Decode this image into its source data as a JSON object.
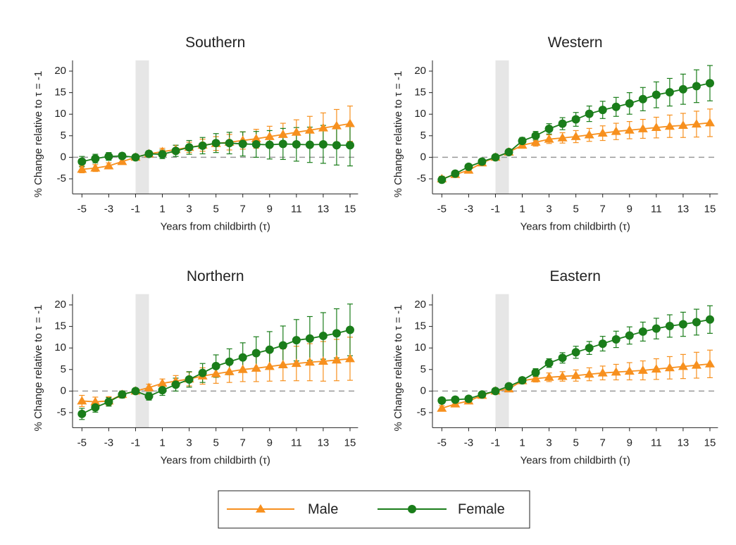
{
  "chart_data": [
    {
      "type": "line",
      "title": "Southern",
      "x_label": "Years from childbirth (τ)",
      "y_label": "% Change relative to τ = -1",
      "x": [
        -5,
        -4,
        -3,
        -2,
        -1,
        0,
        1,
        2,
        3,
        4,
        5,
        6,
        7,
        8,
        9,
        10,
        11,
        12,
        13,
        14,
        15
      ],
      "xlim": [
        -5.7,
        15.6
      ],
      "xticks": [
        -5,
        -3,
        -1,
        1,
        3,
        5,
        7,
        9,
        11,
        13,
        15
      ],
      "ylim": [
        -8.5,
        22.5
      ],
      "yticks": [
        -5,
        0,
        5,
        10,
        15,
        20
      ],
      "highlight_x": [
        -1,
        0
      ],
      "ref_line_y": 0,
      "series": [
        {
          "name": "Male",
          "color": "#f7901e",
          "marker": "triangle",
          "values": [
            -2.8,
            -2.5,
            -2,
            -1,
            0,
            0.8,
            1.3,
            1.8,
            2.3,
            2.8,
            3.2,
            3.5,
            3.9,
            4.3,
            4.8,
            5.3,
            5.8,
            6.3,
            6.8,
            7.3,
            7.8
          ],
          "errors": [
            0.8,
            0.8,
            0.7,
            0.6,
            0,
            0.6,
            0.8,
            1,
            1.2,
            1.4,
            1.6,
            1.8,
            2,
            2.2,
            2.4,
            2.6,
            2.9,
            3.2,
            3.5,
            3.8,
            4.1
          ]
        },
        {
          "name": "Female",
          "color": "#1a7d1a",
          "marker": "circle",
          "values": [
            -1,
            -0.3,
            0.2,
            0.3,
            0,
            0.8,
            0.7,
            1.5,
            2.3,
            2.7,
            3.3,
            3.3,
            3.1,
            3,
            2.9,
            3.1,
            3,
            2.9,
            3,
            2.8,
            2.8
          ],
          "errors": [
            1.2,
            1,
            0.9,
            0.7,
            0,
            0.7,
            1,
            1.3,
            1.6,
            1.9,
            2.2,
            2.5,
            2.8,
            3,
            3.3,
            3.6,
            3.9,
            4.1,
            4.4,
            4.6,
            4.8
          ]
        }
      ]
    },
    {
      "type": "line",
      "title": "Western",
      "x_label": "Years from childbirth (τ)",
      "y_label": "% Change relative to τ = -1",
      "x": [
        -5,
        -4,
        -3,
        -2,
        -1,
        0,
        1,
        2,
        3,
        4,
        5,
        6,
        7,
        8,
        9,
        10,
        11,
        12,
        13,
        14,
        15
      ],
      "xlim": [
        -5.7,
        15.6
      ],
      "xticks": [
        -5,
        -3,
        -1,
        1,
        3,
        5,
        7,
        9,
        11,
        13,
        15
      ],
      "ylim": [
        -8.5,
        22.5
      ],
      "yticks": [
        -5,
        0,
        5,
        10,
        15,
        20
      ],
      "highlight_x": [
        -1,
        0
      ],
      "ref_line_y": 0,
      "series": [
        {
          "name": "Male",
          "color": "#f7901e",
          "marker": "triangle",
          "values": [
            -5,
            -4,
            -3,
            -1.3,
            0,
            1.2,
            2.8,
            3.5,
            4.2,
            4.5,
            4.8,
            5.2,
            5.6,
            6,
            6.3,
            6.6,
            6.9,
            7.2,
            7.4,
            7.7,
            8
          ],
          "errors": [
            0.6,
            0.5,
            0.5,
            0.4,
            0,
            0.5,
            0.7,
            0.9,
            1,
            1.2,
            1.4,
            1.5,
            1.7,
            1.9,
            2,
            2.2,
            2.4,
            2.6,
            2.8,
            3,
            3.2
          ]
        },
        {
          "name": "Female",
          "color": "#1a7d1a",
          "marker": "circle",
          "values": [
            -5.2,
            -3.8,
            -2.2,
            -1,
            0,
            1.2,
            3.8,
            5,
            6.6,
            7.8,
            8.8,
            10.1,
            11,
            11.7,
            12.5,
            13.5,
            14.5,
            15.1,
            15.8,
            16.5,
            17.2
          ],
          "errors": [
            0.7,
            0.6,
            0.5,
            0.4,
            0,
            0.5,
            0.8,
            1,
            1.2,
            1.4,
            1.6,
            1.8,
            2,
            2.2,
            2.5,
            2.7,
            3,
            3.2,
            3.5,
            3.8,
            4.1
          ]
        }
      ]
    },
    {
      "type": "line",
      "title": "Northern",
      "x_label": "Years from childbirth (τ)",
      "y_label": "% Change relative to τ = -1",
      "x": [
        -5,
        -4,
        -3,
        -2,
        -1,
        0,
        1,
        2,
        3,
        4,
        5,
        6,
        7,
        8,
        9,
        10,
        11,
        12,
        13,
        14,
        15
      ],
      "xlim": [
        -5.7,
        15.6
      ],
      "xticks": [
        -5,
        -3,
        -1,
        1,
        3,
        5,
        7,
        9,
        11,
        13,
        15
      ],
      "ylim": [
        -8.5,
        22.5
      ],
      "yticks": [
        -5,
        0,
        5,
        10,
        15,
        20
      ],
      "highlight_x": [
        -1,
        0
      ],
      "ref_line_y": 0,
      "series": [
        {
          "name": "Male",
          "color": "#f7901e",
          "marker": "triangle",
          "values": [
            -2.3,
            -2.5,
            -2.3,
            -0.8,
            0,
            0.8,
            1.8,
            2.3,
            2.8,
            3.5,
            4,
            4.5,
            5,
            5.3,
            5.7,
            6.1,
            6.4,
            6.7,
            6.9,
            7.2,
            7.5
          ],
          "errors": [
            1.3,
            1.1,
            1,
            0.8,
            0,
            0.8,
            1,
            1.3,
            1.6,
            1.9,
            2.2,
            2.5,
            2.8,
            3.1,
            3.4,
            3.7,
            4,
            4.3,
            4.6,
            4.8,
            5
          ]
        },
        {
          "name": "Female",
          "color": "#1a7d1a",
          "marker": "circle",
          "values": [
            -5.3,
            -3.8,
            -2.5,
            -0.8,
            0,
            -1.2,
            0.2,
            1.5,
            2.7,
            4.2,
            5.8,
            6.8,
            7.8,
            8.8,
            9.6,
            10.6,
            11.8,
            12.2,
            12.8,
            13.4,
            14.2
          ],
          "errors": [
            1.3,
            1.1,
            1,
            0.8,
            0,
            0.9,
            1.2,
            1.5,
            1.8,
            2.2,
            2.6,
            3,
            3.4,
            3.8,
            4.2,
            4.5,
            4.8,
            5.1,
            5.4,
            5.7,
            6
          ]
        }
      ]
    },
    {
      "type": "line",
      "title": "Eastern",
      "x_label": "Years from childbirth (τ)",
      "y_label": "% Change relative to τ = -1",
      "x": [
        -5,
        -4,
        -3,
        -2,
        -1,
        0,
        1,
        2,
        3,
        4,
        5,
        6,
        7,
        8,
        9,
        10,
        11,
        12,
        13,
        14,
        15
      ],
      "xlim": [
        -5.7,
        15.6
      ],
      "xticks": [
        -5,
        -3,
        -1,
        1,
        3,
        5,
        7,
        9,
        11,
        13,
        15
      ],
      "ylim": [
        -8.5,
        22.5
      ],
      "yticks": [
        -5,
        0,
        5,
        10,
        15,
        20
      ],
      "highlight_x": [
        -1,
        0
      ],
      "ref_line_y": 0,
      "series": [
        {
          "name": "Male",
          "color": "#f7901e",
          "marker": "triangle",
          "values": [
            -4,
            -3,
            -2.3,
            -1,
            0,
            0.5,
            2.4,
            2.9,
            3.2,
            3.4,
            3.6,
            3.9,
            4.2,
            4.4,
            4.6,
            4.8,
            5.1,
            5.4,
            5.7,
            6,
            6.3
          ],
          "errors": [
            0.6,
            0.5,
            0.5,
            0.4,
            0,
            0.5,
            0.7,
            0.8,
            1,
            1.1,
            1.3,
            1.5,
            1.6,
            1.8,
            2,
            2.2,
            2.4,
            2.6,
            2.8,
            3,
            3.2
          ]
        },
        {
          "name": "Female",
          "color": "#1a7d1a",
          "marker": "circle",
          "values": [
            -2.2,
            -2,
            -1.8,
            -0.8,
            0,
            1.1,
            2.5,
            4.3,
            6.5,
            7.7,
            9,
            10,
            11,
            12,
            12.9,
            13.8,
            14.5,
            15.1,
            15.5,
            16,
            16.6
          ],
          "errors": [
            0.6,
            0.5,
            0.5,
            0.4,
            0,
            0.5,
            0.7,
            0.9,
            1,
            1.2,
            1.4,
            1.5,
            1.7,
            1.9,
            2,
            2.2,
            2.4,
            2.6,
            2.8,
            3,
            3.2
          ]
        }
      ]
    }
  ]
}
